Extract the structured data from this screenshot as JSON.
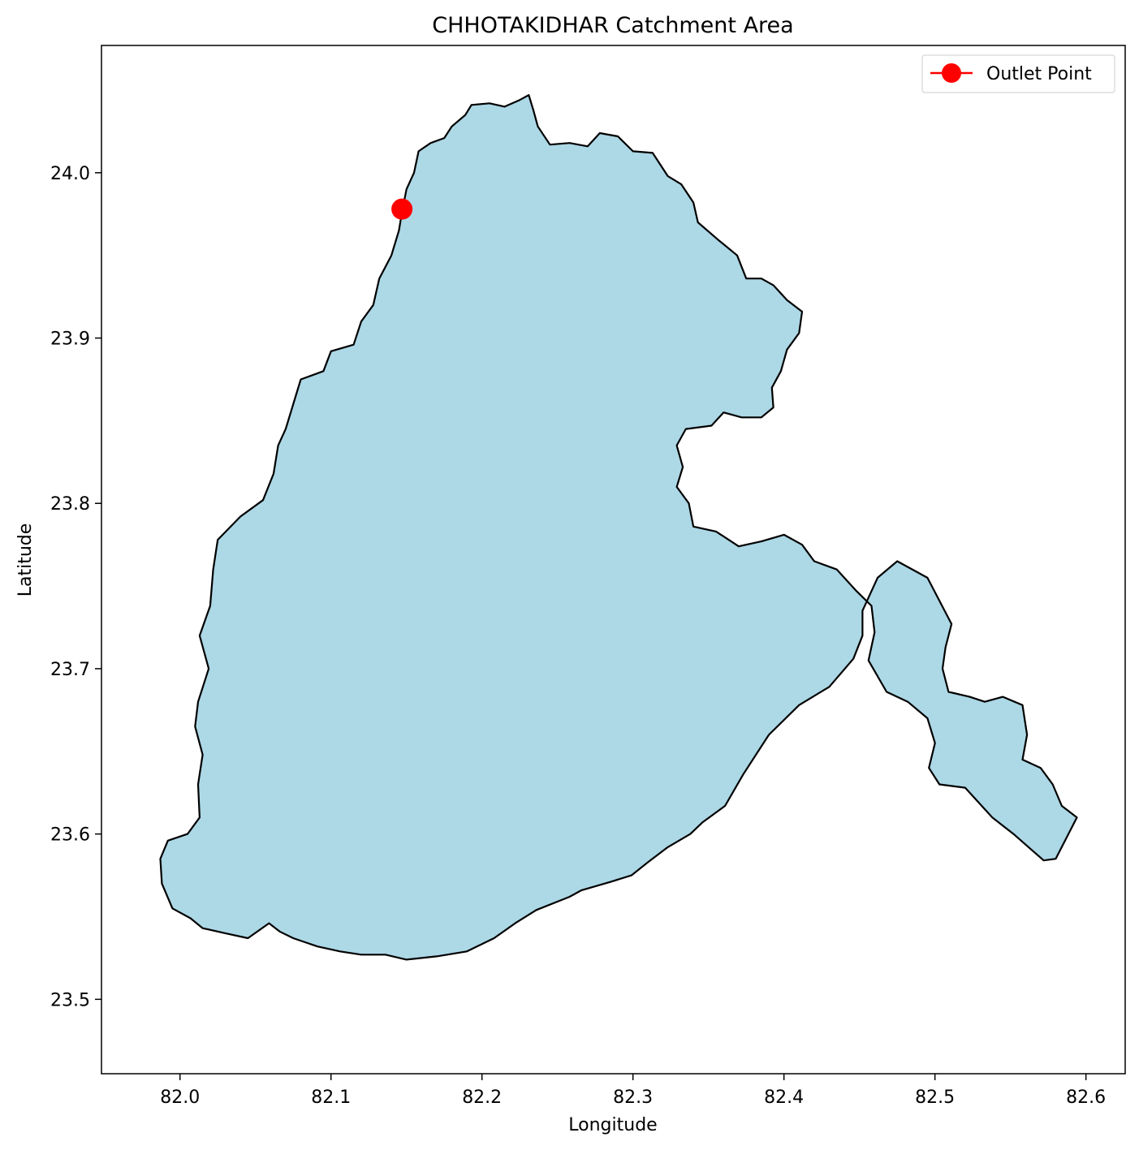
{
  "chart_data": {
    "type": "map",
    "title": "CHHOTAKIDHAR Catchment Area",
    "xlabel": "Longitude",
    "ylabel": "Latitude",
    "xlim": [
      81.948,
      82.626
    ],
    "ylim": [
      23.455,
      24.077
    ],
    "x_ticks": [
      82.0,
      82.1,
      82.2,
      82.3,
      82.4,
      82.5,
      82.6
    ],
    "x_tick_labels": [
      "82.0",
      "82.1",
      "82.2",
      "82.3",
      "82.4",
      "82.5",
      "82.6"
    ],
    "y_ticks": [
      23.5,
      23.6,
      23.7,
      23.8,
      23.9,
      24.0
    ],
    "y_tick_labels": [
      "23.5",
      "23.6",
      "23.7",
      "23.8",
      "23.9",
      "24.0"
    ],
    "grid": false,
    "legend_position": "top-right",
    "legend": [
      {
        "label": "Outlet Point",
        "color": "#ff0000",
        "marker": "circle"
      }
    ],
    "catchment": {
      "fill_color": "#add8e6",
      "edge_color": "#000000",
      "boundary": [
        [
          82.147,
          23.976
        ],
        [
          82.15,
          23.99
        ],
        [
          82.155,
          24.0
        ],
        [
          82.158,
          24.013
        ],
        [
          82.166,
          24.018
        ],
        [
          82.175,
          24.021
        ],
        [
          82.18,
          24.028
        ],
        [
          82.189,
          24.035
        ],
        [
          82.193,
          24.041
        ],
        [
          82.205,
          24.042
        ],
        [
          82.215,
          24.04
        ],
        [
          82.225,
          24.044
        ],
        [
          82.231,
          24.047
        ],
        [
          82.234,
          24.038
        ],
        [
          82.237,
          24.028
        ],
        [
          82.245,
          24.017
        ],
        [
          82.258,
          24.018
        ],
        [
          82.27,
          24.016
        ],
        [
          82.278,
          24.024
        ],
        [
          82.29,
          24.022
        ],
        [
          82.3,
          24.013
        ],
        [
          82.313,
          24.012
        ],
        [
          82.323,
          23.998
        ],
        [
          82.332,
          23.993
        ],
        [
          82.34,
          23.982
        ],
        [
          82.343,
          23.97
        ],
        [
          82.357,
          23.959
        ],
        [
          82.369,
          23.95
        ],
        [
          82.375,
          23.936
        ],
        [
          82.385,
          23.936
        ],
        [
          82.393,
          23.932
        ],
        [
          82.402,
          23.923
        ],
        [
          82.412,
          23.916
        ],
        [
          82.41,
          23.903
        ],
        [
          82.402,
          23.893
        ],
        [
          82.398,
          23.88
        ],
        [
          82.392,
          23.87
        ],
        [
          82.393,
          23.858
        ],
        [
          82.385,
          23.852
        ],
        [
          82.372,
          23.852
        ],
        [
          82.36,
          23.855
        ],
        [
          82.352,
          23.847
        ],
        [
          82.335,
          23.845
        ],
        [
          82.329,
          23.835
        ],
        [
          82.333,
          23.822
        ],
        [
          82.329,
          23.81
        ],
        [
          82.337,
          23.8
        ],
        [
          82.34,
          23.786
        ],
        [
          82.355,
          23.783
        ],
        [
          82.37,
          23.774
        ],
        [
          82.385,
          23.777
        ],
        [
          82.4,
          23.781
        ],
        [
          82.412,
          23.775
        ],
        [
          82.42,
          23.765
        ],
        [
          82.435,
          23.76
        ],
        [
          82.448,
          23.747
        ],
        [
          82.458,
          23.738
        ],
        [
          82.46,
          23.722
        ],
        [
          82.456,
          23.705
        ],
        [
          82.468,
          23.686
        ],
        [
          82.482,
          23.68
        ],
        [
          82.495,
          23.67
        ],
        [
          82.5,
          23.655
        ],
        [
          82.496,
          23.64
        ],
        [
          82.503,
          23.63
        ],
        [
          82.52,
          23.628
        ],
        [
          82.538,
          23.61
        ],
        [
          82.552,
          23.6
        ],
        [
          82.562,
          23.592
        ],
        [
          82.572,
          23.584
        ],
        [
          82.58,
          23.585
        ],
        [
          82.594,
          23.61
        ],
        [
          82.584,
          23.617
        ],
        [
          82.578,
          23.63
        ],
        [
          82.57,
          23.64
        ],
        [
          82.558,
          23.645
        ],
        [
          82.561,
          23.66
        ],
        [
          82.558,
          23.678
        ],
        [
          82.545,
          23.683
        ],
        [
          82.533,
          23.68
        ],
        [
          82.523,
          23.683
        ],
        [
          82.509,
          23.686
        ],
        [
          82.505,
          23.7
        ],
        [
          82.507,
          23.713
        ],
        [
          82.511,
          23.727
        ],
        [
          82.495,
          23.755
        ],
        [
          82.475,
          23.765
        ],
        [
          82.462,
          23.755
        ],
        [
          82.452,
          23.735
        ],
        [
          82.452,
          23.72
        ],
        [
          82.446,
          23.706
        ],
        [
          82.43,
          23.689
        ],
        [
          82.41,
          23.678
        ],
        [
          82.39,
          23.66
        ],
        [
          82.373,
          23.636
        ],
        [
          82.361,
          23.617
        ],
        [
          82.346,
          23.607
        ],
        [
          82.338,
          23.6
        ],
        [
          82.323,
          23.592
        ],
        [
          82.31,
          23.583
        ],
        [
          82.299,
          23.575
        ],
        [
          82.285,
          23.571
        ],
        [
          82.266,
          23.566
        ],
        [
          82.258,
          23.562
        ],
        [
          82.236,
          23.554
        ],
        [
          82.222,
          23.546
        ],
        [
          82.208,
          23.537
        ],
        [
          82.19,
          23.529
        ],
        [
          82.17,
          23.526
        ],
        [
          82.15,
          23.524
        ],
        [
          82.136,
          23.527
        ],
        [
          82.12,
          23.527
        ],
        [
          82.106,
          23.529
        ],
        [
          82.091,
          23.532
        ],
        [
          82.075,
          23.537
        ],
        [
          82.066,
          23.541
        ],
        [
          82.059,
          23.546
        ],
        [
          82.045,
          23.537
        ],
        [
          82.03,
          23.54
        ],
        [
          82.015,
          23.543
        ],
        [
          82.007,
          23.549
        ],
        [
          81.995,
          23.555
        ],
        [
          81.988,
          23.57
        ],
        [
          81.987,
          23.585
        ],
        [
          81.992,
          23.596
        ],
        [
          82.005,
          23.6
        ],
        [
          82.013,
          23.61
        ],
        [
          82.012,
          23.63
        ],
        [
          82.015,
          23.648
        ],
        [
          82.01,
          23.665
        ],
        [
          82.012,
          23.68
        ],
        [
          82.019,
          23.7
        ],
        [
          82.013,
          23.72
        ],
        [
          82.02,
          23.738
        ],
        [
          82.022,
          23.76
        ],
        [
          82.025,
          23.778
        ],
        [
          82.04,
          23.792
        ],
        [
          82.055,
          23.802
        ],
        [
          82.062,
          23.818
        ],
        [
          82.065,
          23.835
        ],
        [
          82.07,
          23.845
        ],
        [
          82.075,
          23.86
        ],
        [
          82.08,
          23.875
        ],
        [
          82.095,
          23.88
        ],
        [
          82.1,
          23.892
        ],
        [
          82.115,
          23.896
        ],
        [
          82.12,
          23.91
        ],
        [
          82.128,
          23.92
        ],
        [
          82.132,
          23.936
        ],
        [
          82.14,
          23.95
        ],
        [
          82.145,
          23.965
        ],
        [
          82.147,
          23.976
        ]
      ]
    },
    "outlet_point": {
      "name": "Outlet Point",
      "lon": 82.147,
      "lat": 23.978,
      "color": "#ff0000"
    }
  }
}
